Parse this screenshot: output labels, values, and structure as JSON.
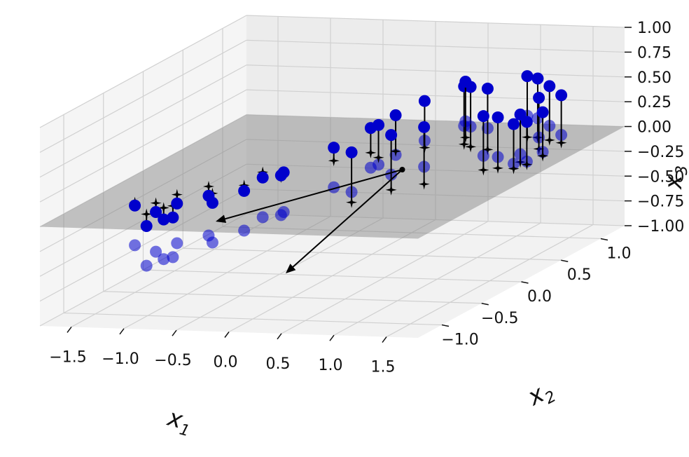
{
  "chart_data": {
    "type": "scatter",
    "dimensions": 3,
    "title": "",
    "xlabel": "x1",
    "ylabel": "x2",
    "zlabel": "x3",
    "xlabel_main": "x",
    "xlabel_sub": "1",
    "ylabel_main": "x",
    "ylabel_sub": "2",
    "zlabel_main": "x",
    "zlabel_sub": "3",
    "xlim": [
      -1.8,
      1.8
    ],
    "ylim": [
      -1.3,
      1.3
    ],
    "zlim": [
      -1.0,
      1.0
    ],
    "x_ticks": [
      "−1.5",
      "−1.0",
      "−0.5",
      "0.0",
      "0.5",
      "1.0",
      "1.5"
    ],
    "x_tick_values": [
      -1.5,
      -1.0,
      -0.5,
      0.0,
      0.5,
      1.0,
      1.5
    ],
    "y_ticks": [
      "−1.0",
      "−0.5",
      "0.0",
      "0.5",
      "1.0"
    ],
    "y_tick_values": [
      -1.0,
      -0.5,
      0.0,
      0.5,
      1.0
    ],
    "z_ticks": [
      "−1.00",
      "−0.75",
      "−0.50",
      "−0.25",
      "0.00",
      "0.25",
      "0.50",
      "0.75",
      "1.00"
    ],
    "z_tick_values": [
      -1.0,
      -0.75,
      -0.5,
      -0.25,
      0.0,
      0.25,
      0.5,
      0.75,
      1.0
    ],
    "grid": true,
    "colors": {
      "points": "#0000cc",
      "projections": "#000000",
      "plane": "#808080",
      "pane": "#f2f2f2",
      "grid": "#d0d0d0"
    },
    "plane_corners": [
      [
        -1.8,
        -1.3
      ],
      [
        1.8,
        -1.3
      ],
      [
        1.8,
        1.3
      ],
      [
        -1.8,
        1.3
      ]
    ],
    "origin": [
      0.0,
      0.0,
      0.0
    ],
    "principal_axes": [
      [
        -1.0,
        -0.25,
        -0.25
      ],
      [
        -0.45,
        -0.85,
        -0.3
      ]
    ],
    "points_xy": [
      [
        -1.05,
        -0.95
      ],
      [
        -1.0,
        -0.8
      ],
      [
        -1.15,
        -0.7
      ],
      [
        -0.95,
        -0.75
      ],
      [
        -1.1,
        -0.5
      ],
      [
        -0.8,
        -0.45
      ],
      [
        -0.65,
        -0.25
      ],
      [
        -0.95,
        -0.3
      ],
      [
        -0.45,
        -0.05
      ],
      [
        -0.7,
        0.05
      ],
      [
        -0.5,
        0.05
      ],
      [
        -0.25,
        0.35
      ],
      [
        -0.05,
        0.55
      ],
      [
        0.15,
        0.6
      ],
      [
        0.1,
        0.45
      ],
      [
        0.35,
        0.7
      ],
      [
        0.65,
        0.8
      ],
      [
        0.75,
        0.75
      ],
      [
        0.95,
        0.7
      ],
      [
        0.55,
        0.95
      ],
      [
        1.1,
        1.0
      ],
      [
        1.2,
        1.0
      ],
      [
        1.35,
        0.95
      ],
      [
        1.5,
        0.9
      ],
      [
        1.4,
        0.75
      ],
      [
        1.55,
        0.6
      ],
      [
        1.45,
        0.45
      ],
      [
        1.5,
        0.3
      ],
      [
        1.35,
        0.3
      ],
      [
        1.25,
        0.25
      ],
      [
        1.55,
        0.4
      ],
      [
        0.95,
        -0.1
      ],
      [
        0.75,
        -0.25
      ],
      [
        0.6,
        -0.55
      ],
      [
        -1.35,
        -0.7
      ]
    ]
  }
}
